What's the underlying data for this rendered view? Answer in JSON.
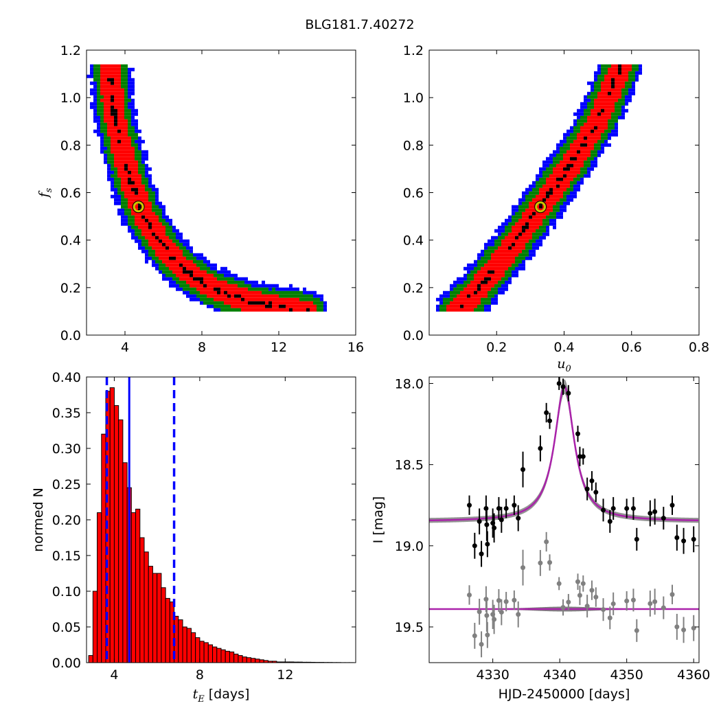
{
  "figure": {
    "title": "BLG181.7.40272",
    "colors": {
      "blue": "#0000ff",
      "green": "#007f00",
      "red": "#ff0000",
      "black": "#000000",
      "marker": "#c8c800",
      "gray": "#808080",
      "magenta": "#aa22aa"
    }
  },
  "chart_data": [
    {
      "type": "heatmap",
      "panel": "tE-fs",
      "xlabel": "",
      "ylabel_main": "f",
      "ylabel_sub": "s",
      "xlim": [
        2,
        16
      ],
      "ylim": [
        0.0,
        1.2
      ],
      "xticks": [
        "4",
        "8",
        "12",
        "16"
      ],
      "yticks": [
        "0.0",
        "0.2",
        "0.4",
        "0.6",
        "0.8",
        "1.0",
        "1.2"
      ],
      "marker": {
        "x": 4.7,
        "y": 0.54
      },
      "ridge": [
        [
          3.2,
          1.14
        ],
        [
          3.4,
          0.95
        ],
        [
          3.8,
          0.8
        ],
        [
          4.3,
          0.65
        ],
        [
          5.0,
          0.5
        ],
        [
          6.0,
          0.37
        ],
        [
          7.0,
          0.28
        ],
        [
          8.5,
          0.2
        ],
        [
          10.5,
          0.14
        ],
        [
          13.5,
          0.1
        ]
      ],
      "widths": {
        "red": 0.55,
        "green": 0.85,
        "blue": 1.1
      }
    },
    {
      "type": "heatmap",
      "panel": "u0-fs",
      "xlabel_main": "u",
      "xlabel_sub": "0",
      "ylabel": "",
      "xlim": [
        0.0,
        0.8
      ],
      "ylim": [
        0.0,
        1.2
      ],
      "xticks": [
        "0.2",
        "0.4",
        "0.6",
        "0.8"
      ],
      "yticks": [
        "0.0",
        "0.2",
        "0.4",
        "0.6",
        "0.8",
        "1.0",
        "1.2"
      ],
      "marker": {
        "x": 0.33,
        "y": 0.54
      },
      "ridge": [
        [
          0.08,
          0.1
        ],
        [
          0.15,
          0.2
        ],
        [
          0.25,
          0.38
        ],
        [
          0.33,
          0.54
        ],
        [
          0.42,
          0.72
        ],
        [
          0.5,
          0.9
        ],
        [
          0.57,
          1.14
        ]
      ],
      "widths": {
        "red": 0.032,
        "green": 0.05,
        "blue": 0.064
      }
    },
    {
      "type": "bar",
      "panel": "tE-histogram",
      "xlabel_main": "t",
      "xlabel_sub": "E",
      "xlabel_unit": " [days]",
      "ylabel": "normed N",
      "xlim": [
        2.7,
        15.3
      ],
      "ylim": [
        0.0,
        0.4
      ],
      "xticks": [
        "4",
        "8",
        "12"
      ],
      "yticks": [
        "0.00",
        "0.05",
        "0.10",
        "0.15",
        "0.20",
        "0.25",
        "0.30",
        "0.35",
        "0.40"
      ],
      "bin_start": 2.8,
      "bin_width": 0.2,
      "values": [
        0.01,
        0.1,
        0.21,
        0.32,
        0.38,
        0.385,
        0.36,
        0.34,
        0.28,
        0.245,
        0.21,
        0.215,
        0.175,
        0.155,
        0.135,
        0.125,
        0.125,
        0.105,
        0.09,
        0.085,
        0.065,
        0.06,
        0.05,
        0.048,
        0.042,
        0.035,
        0.03,
        0.028,
        0.025,
        0.022,
        0.02,
        0.018,
        0.016,
        0.015,
        0.012,
        0.01,
        0.008,
        0.007,
        0.006,
        0.005,
        0.004,
        0.003,
        0.002,
        0.002,
        0.001,
        0.001,
        0.001,
        0.001,
        0.0008,
        0.0008,
        0.0006,
        0.0006,
        0.0005,
        0.0004,
        0.0004,
        0.0003,
        0.0003,
        0.0002,
        0.0002,
        0.0001,
        0.0001,
        0.0001
      ],
      "median": 4.7,
      "bounds": [
        3.65,
        6.8
      ]
    },
    {
      "type": "scatter",
      "panel": "light-curve",
      "xlabel": "HJD-2450000 [days]",
      "ylabel": "I [mag]",
      "xlim": [
        4320.5,
        4360.8
      ],
      "ylim": [
        19.72,
        17.96
      ],
      "xticks": [
        "4330",
        "4340",
        "4350",
        "4360"
      ],
      "yticks": [
        "18.0",
        "18.5",
        "19.0",
        "19.5"
      ],
      "model": {
        "t0": 4340.7,
        "tau": 1.8,
        "base": 18.85,
        "peak": 18.02
      },
      "residual_offset": 19.39,
      "points": [
        [
          4326.5,
          18.75,
          0.06
        ],
        [
          4327.3,
          19.0,
          0.08
        ],
        [
          4328.0,
          18.85,
          0.08
        ],
        [
          4328.3,
          19.05,
          0.08
        ],
        [
          4329.0,
          18.77,
          0.08
        ],
        [
          4329.1,
          18.87,
          0.1
        ],
        [
          4329.2,
          18.99,
          0.08
        ],
        [
          4330.0,
          18.86,
          0.09
        ],
        [
          4330.2,
          18.89,
          0.09
        ],
        [
          4330.9,
          18.77,
          0.07
        ],
        [
          4331.3,
          18.84,
          0.08
        ],
        [
          4332.0,
          18.77,
          0.06
        ],
        [
          4333.2,
          18.75,
          0.06
        ],
        [
          4333.8,
          18.83,
          0.08
        ],
        [
          4334.5,
          18.53,
          0.11
        ],
        [
          4337.1,
          18.4,
          0.08
        ],
        [
          4338.0,
          18.18,
          0.06
        ],
        [
          4338.5,
          18.23,
          0.05
        ],
        [
          4339.9,
          18.0,
          0.04
        ],
        [
          4340.5,
          18.02,
          0.05
        ],
        [
          4341.3,
          18.06,
          0.05
        ],
        [
          4342.7,
          18.31,
          0.05
        ],
        [
          4343.0,
          18.45,
          0.06
        ],
        [
          4343.5,
          18.45,
          0.05
        ],
        [
          4344.1,
          18.65,
          0.07
        ],
        [
          4344.8,
          18.6,
          0.06
        ],
        [
          4345.4,
          18.67,
          0.06
        ],
        [
          4346.5,
          18.78,
          0.07
        ],
        [
          4347.5,
          18.85,
          0.07
        ],
        [
          4348.0,
          18.77,
          0.07
        ],
        [
          4350.0,
          18.77,
          0.06
        ],
        [
          4351.0,
          18.77,
          0.07
        ],
        [
          4351.5,
          18.96,
          0.07
        ],
        [
          4353.5,
          18.8,
          0.08
        ],
        [
          4354.2,
          18.79,
          0.08
        ],
        [
          4355.5,
          18.83,
          0.07
        ],
        [
          4356.8,
          18.75,
          0.06
        ],
        [
          4357.5,
          18.95,
          0.08
        ],
        [
          4358.5,
          18.97,
          0.08
        ],
        [
          4360.0,
          18.96,
          0.08
        ]
      ]
    }
  ]
}
